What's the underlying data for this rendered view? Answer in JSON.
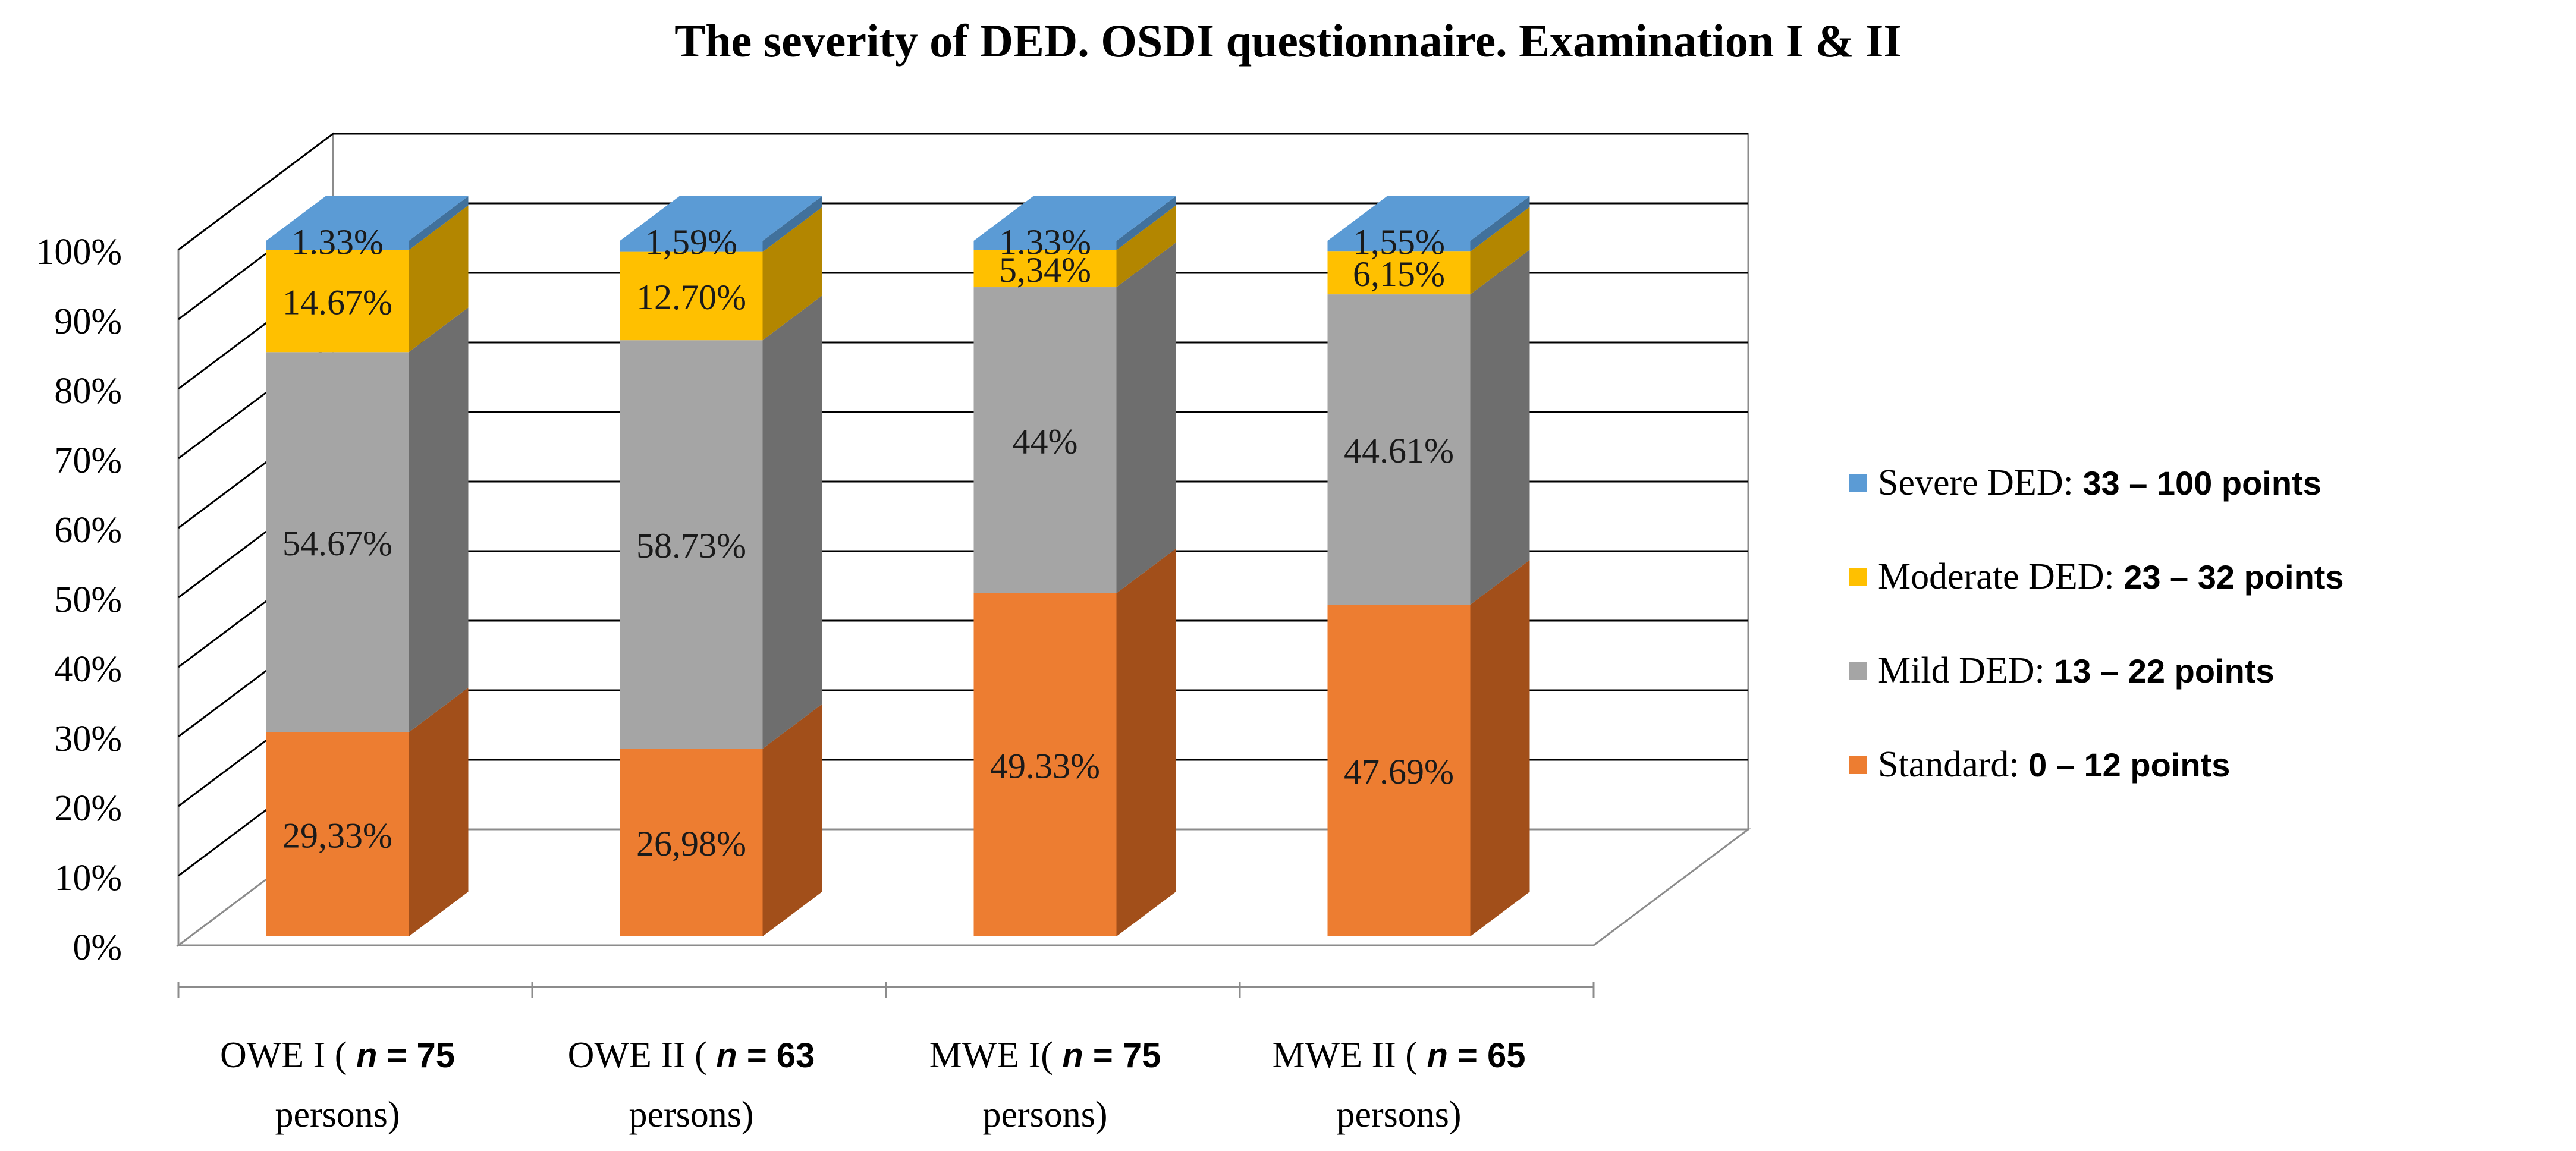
{
  "chart_data": {
    "type": "bar",
    "stacked": true,
    "style": "3d-stacked-percent",
    "title": "The severity of DED. OSDI questionnaire. Examination I & II",
    "xlabel": "",
    "ylabel": "",
    "ylim": [
      0,
      100
    ],
    "yticks": [
      "0%",
      "10%",
      "20%",
      "30%",
      "40%",
      "50%",
      "60%",
      "70%",
      "80%",
      "90%",
      "100%"
    ],
    "categories": [
      {
        "prefix": "OWE I ( ",
        "n_label": "n",
        "n_value": " = 75",
        "line2": "persons)"
      },
      {
        "prefix": "OWE II ( ",
        "n_label": "n",
        "n_value": " = 63",
        "line2": "persons)"
      },
      {
        "prefix": "MWE I( ",
        "n_label": "n",
        "n_value": " = 75",
        "line2": "persons)"
      },
      {
        "prefix": "MWE II ( ",
        "n_label": "n",
        "n_value": " = 65",
        "line2": "persons)"
      }
    ],
    "series": [
      {
        "name": "Standard",
        "legend_text": "Standard: ",
        "legend_bold": "0 – 12 points",
        "color": "#ED7D31",
        "side_color": "#A24F1A",
        "values": [
          29.33,
          26.98,
          49.33,
          47.69
        ],
        "labels": [
          "29,33%",
          "26,98%",
          "49.33%",
          "47.69%"
        ]
      },
      {
        "name": "Mild DED",
        "legend_text": "Mild DED: ",
        "legend_bold": "13 – 22 points",
        "color": "#A5A5A5",
        "side_color": "#6E6E6E",
        "values": [
          54.67,
          58.73,
          44.0,
          44.61
        ],
        "labels": [
          "54.67%",
          "58.73%",
          "44%",
          "44.61%"
        ]
      },
      {
        "name": "Moderate DED",
        "legend_text": "Moderate DED: ",
        "legend_bold": "23 – 32 points",
        "color": "#FFC000",
        "side_color": "#B38600",
        "values": [
          14.67,
          12.7,
          5.34,
          6.15
        ],
        "labels": [
          "14.67%",
          "12.70%",
          "5,34%",
          "6,15%"
        ]
      },
      {
        "name": "Severe DED",
        "legend_text": "Severe DED: ",
        "legend_bold": "33 – 100 points",
        "color": "#5B9BD5",
        "side_color": "#41719C",
        "values": [
          1.33,
          1.59,
          1.33,
          1.55
        ],
        "labels": [
          "1.33%",
          "1,59%",
          "1.33%",
          "1,55%"
        ]
      }
    ],
    "legend_position": "right",
    "grid": true
  }
}
